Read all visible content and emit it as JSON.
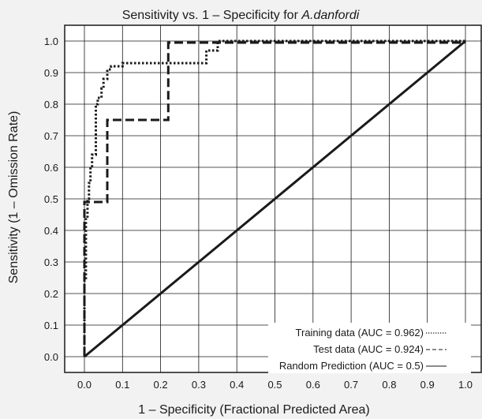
{
  "chart_data": {
    "type": "line",
    "title": "Sensitivity vs. 1 – Specificity for ",
    "title_species": "A.danfordi",
    "xlabel": "1 – Specificity (Fractional Predicted Area)",
    "ylabel": "Sensitivity (1 – Omission Rate)",
    "xlim": [
      0,
      1
    ],
    "ylim": [
      0,
      1
    ],
    "grid": true,
    "legend_position": "bottom-right",
    "x_ticks": [
      "0.0",
      "0.1",
      "0.2",
      "0.3",
      "0.4",
      "0.5",
      "0.6",
      "0.7",
      "0.8",
      "0.9",
      "1.0"
    ],
    "y_ticks": [
      "0.0",
      "0.1",
      "0.2",
      "0.3",
      "0.4",
      "0.5",
      "0.6",
      "0.7",
      "0.8",
      "0.9",
      "1.0"
    ],
    "series": [
      {
        "name": "Training data (AUC = 0.962)",
        "style": "dotted",
        "x": [
          0,
          0,
          0.004,
          0.004,
          0.008,
          0.008,
          0.012,
          0.012,
          0.016,
          0.016,
          0.02,
          0.02,
          0.03,
          0.03,
          0.035,
          0.035,
          0.045,
          0.045,
          0.05,
          0.05,
          0.06,
          0.06,
          0.07,
          0.07,
          0.1,
          0.1,
          0.32,
          0.32,
          0.35,
          0.35,
          1.0
        ],
        "y": [
          0,
          0.24,
          0.24,
          0.44,
          0.44,
          0.5,
          0.5,
          0.55,
          0.55,
          0.6,
          0.6,
          0.64,
          0.64,
          0.8,
          0.8,
          0.82,
          0.82,
          0.85,
          0.85,
          0.88,
          0.88,
          0.91,
          0.91,
          0.92,
          0.92,
          0.93,
          0.93,
          0.97,
          0.97,
          1.0,
          1.0
        ]
      },
      {
        "name": "Test data (AUC = 0.924)",
        "style": "dashed",
        "x": [
          0,
          0,
          0.06,
          0.06,
          0.22,
          0.22,
          1.0
        ],
        "y": [
          0,
          0.49,
          0.49,
          0.75,
          0.75,
          0.995,
          0.995
        ]
      },
      {
        "name": "Random Prediction (AUC = 0.5)",
        "style": "solid",
        "x": [
          0,
          1
        ],
        "y": [
          0,
          1
        ]
      }
    ]
  },
  "legend": [
    {
      "label": "Training data (AUC = 0.962)",
      "style": "dotted"
    },
    {
      "label": "Test data (AUC = 0.924)",
      "style": "dashed"
    },
    {
      "label": "Random Prediction (AUC = 0.5)",
      "style": "solid"
    }
  ]
}
